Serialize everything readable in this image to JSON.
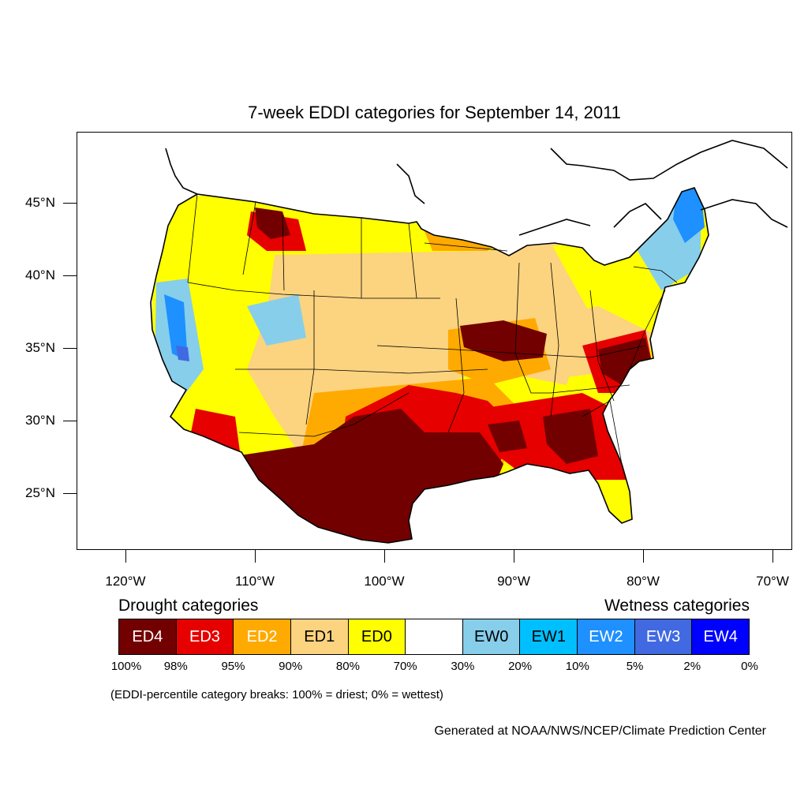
{
  "title": "7-week EDDI categories for September 14, 2011",
  "map": {
    "lat_labels": [
      "45°N",
      "40°N",
      "35°N",
      "30°N",
      "25°N"
    ],
    "lat_values": [
      45,
      40,
      35,
      30,
      25
    ],
    "lon_labels": [
      "120°W",
      "110°W",
      "100°W",
      "90°W",
      "80°W",
      "70°W"
    ],
    "lon_values": [
      -120,
      -110,
      -100,
      -90,
      -80,
      -70
    ],
    "lon_range": [
      -124,
      -68.5
    ],
    "lat_range": [
      21,
      50
    ],
    "regions": [
      {
        "category": "ED4",
        "area": "Texas and southern Plains"
      },
      {
        "category": "ED4",
        "area": "Mid-Mississippi valley"
      },
      {
        "category": "ED4",
        "area": "Southeast Atlantic coast"
      },
      {
        "category": "ED3",
        "area": "Upper Midwest"
      },
      {
        "category": "ED2",
        "area": "Northern Plains"
      },
      {
        "category": "EW2",
        "area": "California interior"
      },
      {
        "category": "EW2",
        "area": "New England"
      }
    ]
  },
  "legend": {
    "drought_title": "Drought categories",
    "wetness_title": "Wetness categories",
    "categories": [
      {
        "label": "ED4",
        "color": "#730000",
        "text_color": "#ffffff"
      },
      {
        "label": "ED3",
        "color": "#e60000",
        "text_color": "#ffffff"
      },
      {
        "label": "ED2",
        "color": "#ffaa00",
        "text_color": "#ffffff"
      },
      {
        "label": "ED1",
        "color": "#fcd37f",
        "text_color": "#000000"
      },
      {
        "label": "ED0",
        "color": "#ffff00",
        "text_color": "#000000"
      },
      {
        "label": "",
        "color": "#ffffff",
        "text_color": "#000000"
      },
      {
        "label": "EW0",
        "color": "#87ceeb",
        "text_color": "#000000"
      },
      {
        "label": "EW1",
        "color": "#00bfff",
        "text_color": "#000000"
      },
      {
        "label": "EW2",
        "color": "#1e90ff",
        "text_color": "#ffffff"
      },
      {
        "label": "EW3",
        "color": "#4169e1",
        "text_color": "#ffffff"
      },
      {
        "label": "EW4",
        "color": "#0000ff",
        "text_color": "#ffffff"
      }
    ],
    "percentiles": [
      "100%",
      "98%",
      "95%",
      "90%",
      "80%",
      "70%",
      "30%",
      "20%",
      "10%",
      "5%",
      "2%",
      "0%"
    ]
  },
  "note": "(EDDI-percentile category breaks: 100% = driest; 0% = wettest)",
  "credit": "Generated at NOAA/NWS/NCEP/Climate Prediction Center"
}
